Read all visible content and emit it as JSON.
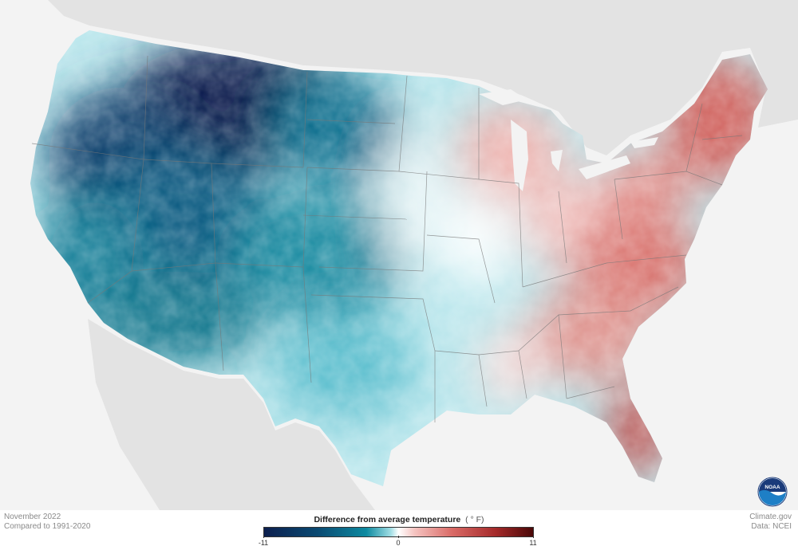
{
  "map": {
    "subject": "Difference from average temperature, contiguous United States",
    "colors": {
      "background": "#f3f3f3",
      "land_outside": "#e3e3e3",
      "cold_extreme": "#0c1f4e",
      "cold": "#0d8aa0",
      "neutral": "#ffffff",
      "warm": "#d96a66",
      "warm_extreme": "#4a0808",
      "state_border": "#777777"
    },
    "regions": [
      {
        "name": "northern-rockies",
        "anomaly": -9
      },
      {
        "name": "pacific-northwest",
        "anomaly": -6
      },
      {
        "name": "california",
        "anomaly": -4
      },
      {
        "name": "southwest",
        "anomaly": -5
      },
      {
        "name": "great-basin",
        "anomaly": -7
      },
      {
        "name": "northern-plains",
        "anomaly": -6
      },
      {
        "name": "central-plains",
        "anomaly": -4
      },
      {
        "name": "texas",
        "anomaly": -2
      },
      {
        "name": "upper-midwest",
        "anomaly": 2
      },
      {
        "name": "ohio-valley",
        "anomaly": 3
      },
      {
        "name": "southeast",
        "anomaly": 5
      },
      {
        "name": "florida",
        "anomaly": 6
      },
      {
        "name": "northeast",
        "anomaly": 5
      }
    ]
  },
  "footer": {
    "date": "November 2022",
    "baseline": "Compared to 1991-2020",
    "source_site": "Climate.gov",
    "data_source": "Data: NCEI"
  },
  "legend": {
    "title": "Difference from average temperature",
    "unit": "( ° F)",
    "min_label": "-11",
    "mid_label": "0",
    "max_label": "11"
  },
  "logo": {
    "text": "NOAA",
    "icon": "noaa-logo-icon"
  }
}
